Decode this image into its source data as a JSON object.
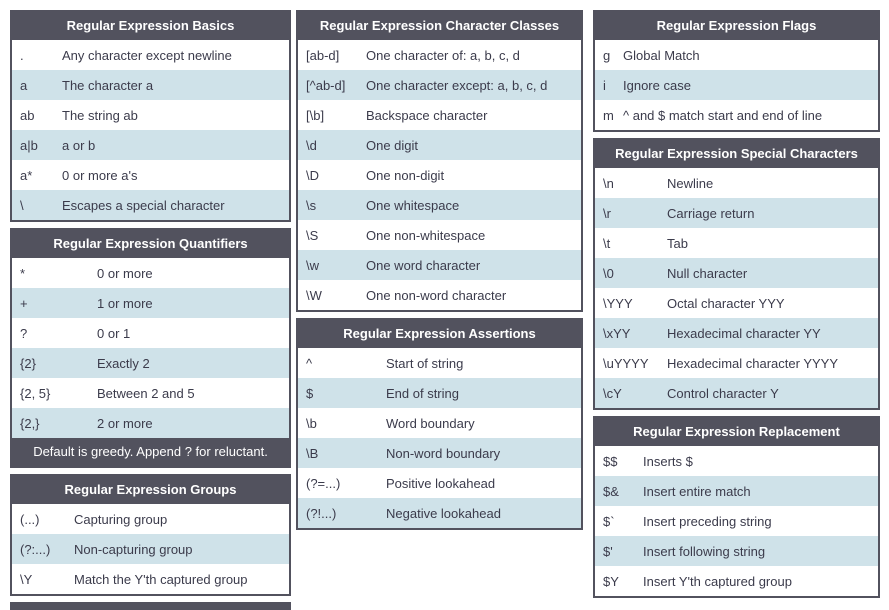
{
  "colors": {
    "header_bg": "#52525e",
    "row_alt_bg": "#cfe2e9",
    "row_bg": "#ffffff",
    "header_text": "#ffffff",
    "body_text": "#3b3b4b"
  },
  "tables": {
    "basics": {
      "title": "Regular Expression Basics",
      "rows": [
        {
          "sym": ".",
          "desc": "Any character except newline"
        },
        {
          "sym": "a",
          "desc": "The character a"
        },
        {
          "sym": "ab",
          "desc": "The string ab"
        },
        {
          "sym": "a|b",
          "desc": "a or b"
        },
        {
          "sym": "a*",
          "desc": "0 or more a's"
        },
        {
          "sym": "\\",
          "desc": "Escapes a special character"
        }
      ]
    },
    "quantifiers": {
      "title": "Regular Expression Quantifiers",
      "rows": [
        {
          "sym": "*",
          "desc": "0 or more"
        },
        {
          "sym": "+",
          "desc": "1 or more"
        },
        {
          "sym": "?",
          "desc": "0 or 1"
        },
        {
          "sym": "{2}",
          "desc": "Exactly 2"
        },
        {
          "sym": "{2, 5}",
          "desc": "Between 2 and 5"
        },
        {
          "sym": "{2,}",
          "desc": "2 or more"
        }
      ],
      "footer": "Default is greedy. Append ? for reluctant."
    },
    "groups": {
      "title": "Regular Expression Groups",
      "rows": [
        {
          "sym": "(...)",
          "desc": "Capturing group"
        },
        {
          "sym": "(?:...)",
          "desc": "Non-capturing group"
        },
        {
          "sym": "\\Y",
          "desc": "Match the Y'th captured group"
        }
      ]
    },
    "charclasses": {
      "title": "Regular Expression Character Classes",
      "rows": [
        {
          "sym": "[ab-d]",
          "desc": "One character of: a, b, c, d"
        },
        {
          "sym": "[^ab-d]",
          "desc": "One character except: a, b, c, d"
        },
        {
          "sym": "[\\b]",
          "desc": "Backspace character"
        },
        {
          "sym": "\\d",
          "desc": "One digit"
        },
        {
          "sym": "\\D",
          "desc": "One non-digit"
        },
        {
          "sym": "\\s",
          "desc": "One whitespace"
        },
        {
          "sym": "\\S",
          "desc": "One non-whitespace"
        },
        {
          "sym": "\\w",
          "desc": "One word character"
        },
        {
          "sym": "\\W",
          "desc": "One non-word character"
        }
      ]
    },
    "assertions": {
      "title": "Regular Expression Assertions",
      "rows": [
        {
          "sym": "^",
          "desc": "Start of string"
        },
        {
          "sym": "$",
          "desc": "End of string"
        },
        {
          "sym": "\\b",
          "desc": "Word boundary"
        },
        {
          "sym": "\\B",
          "desc": "Non-word boundary"
        },
        {
          "sym": "(?=...)",
          "desc": "Positive lookahead"
        },
        {
          "sym": "(?!...)",
          "desc": "Negative lookahead"
        }
      ]
    },
    "flags": {
      "title": "Regular Expression Flags",
      "rows": [
        {
          "sym": "g",
          "desc": "Global Match"
        },
        {
          "sym": "i",
          "desc": "Ignore case"
        },
        {
          "sym": "m",
          "desc": "^ and $ match start and end of line"
        }
      ]
    },
    "special": {
      "title": "Regular Expression Special Characters",
      "rows": [
        {
          "sym": "\\n",
          "desc": "Newline"
        },
        {
          "sym": "\\r",
          "desc": "Carriage return"
        },
        {
          "sym": "\\t",
          "desc": "Tab"
        },
        {
          "sym": "\\0",
          "desc": "Null character"
        },
        {
          "sym": "\\YYY",
          "desc": "Octal character YYY"
        },
        {
          "sym": "\\xYY",
          "desc": "Hexadecimal character YY"
        },
        {
          "sym": "\\uYYYY",
          "desc": "Hexadecimal character YYYY"
        },
        {
          "sym": "\\cY",
          "desc": "Control character Y"
        }
      ]
    },
    "replacement": {
      "title": "Regular Expression Replacement",
      "rows": [
        {
          "sym": "$$",
          "desc": "Inserts $"
        },
        {
          "sym": "$&",
          "desc": "Insert entire match"
        },
        {
          "sym": "$`",
          "desc": "Insert preceding string"
        },
        {
          "sym": "$'",
          "desc": "Insert following string"
        },
        {
          "sym": "$Y",
          "desc": "Insert Y'th captured group"
        }
      ]
    }
  }
}
